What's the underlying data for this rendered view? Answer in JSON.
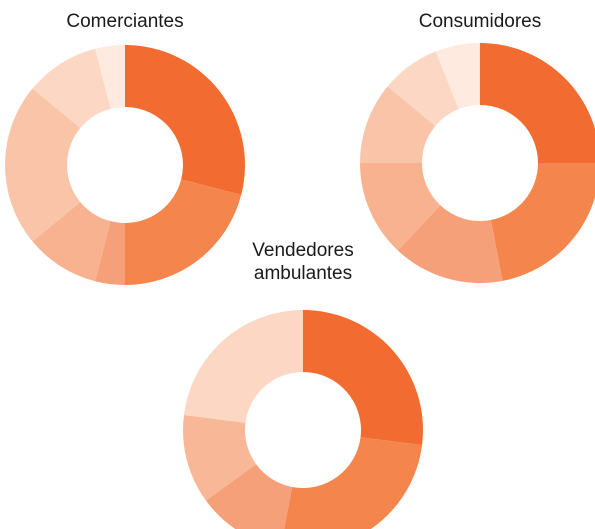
{
  "chart_data": [
    {
      "type": "donut",
      "title": "Comerciantes",
      "values": [
        29,
        21,
        4,
        10,
        22,
        10,
        4
      ],
      "colors": [
        "#f26b30",
        "#f4854c",
        "#f6a07a",
        "#f8b290",
        "#fac4a8",
        "#fcd8c4",
        "#feeadf"
      ]
    },
    {
      "type": "donut",
      "title": "Consumidores",
      "values": [
        25,
        22,
        15,
        13,
        11,
        8,
        6
      ],
      "colors": [
        "#f26b30",
        "#f4854c",
        "#f6a07a",
        "#f8b290",
        "#fac4a8",
        "#fcd8c4",
        "#feeadf"
      ]
    },
    {
      "type": "donut",
      "title": "Vendedores ambulantes",
      "values": [
        27,
        26,
        12,
        12,
        23
      ],
      "colors": [
        "#f26b30",
        "#f4854c",
        "#f6a07a",
        "#f8b898",
        "#fcd8c4"
      ]
    }
  ]
}
